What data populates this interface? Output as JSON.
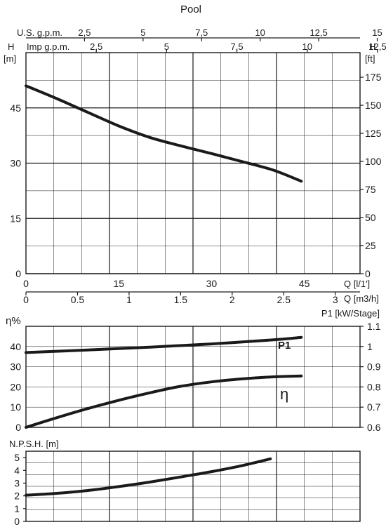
{
  "title": "Pool",
  "head_panel": {
    "y_left_label": "H",
    "y_left_unit": "[m]",
    "y_right_label": "H",
    "y_right_unit": "[ft]",
    "top_axis_1_label": "U.S. g.p.m.",
    "top_axis_1_ticks": [
      "2.5",
      "5",
      "7.5",
      "10",
      "12.5",
      "15"
    ],
    "top_axis_2_label": "Imp g.p.m.",
    "top_axis_2_ticks": [
      "2.5",
      "5",
      "7.5",
      "10",
      "12.5"
    ],
    "x_lmin_label": "Q [l/1']",
    "x_m3h_label": "Q [m3/h]",
    "x_lmin_ticks": [
      "0",
      "15",
      "30",
      "45"
    ],
    "x_m3h_ticks": [
      "0",
      "0.5",
      "1",
      "1.5",
      "2",
      "2.5",
      "3"
    ],
    "y_left_ticks": [
      "0",
      "15",
      "30",
      "45"
    ],
    "y_right_ticks": [
      "0",
      "25",
      "50",
      "75",
      "100",
      "125",
      "150",
      "175"
    ]
  },
  "efficiency_panel": {
    "y_left_label": "η%",
    "y_right_label": "P1 [kW/Stage]",
    "y_left_ticks": [
      "0",
      "10",
      "20",
      "30",
      "40"
    ],
    "y_right_ticks": [
      "0.6",
      "0.7",
      "0.8",
      "0.9",
      "1",
      "1.1"
    ],
    "p1_curve_label": "P1",
    "eta_curve_label": "η"
  },
  "npsh_panel": {
    "y_label": "N.P.S.H. [m]",
    "y_ticks": [
      "0",
      "1",
      "2",
      "3",
      "4",
      "5"
    ]
  },
  "chart_data": [
    {
      "type": "line",
      "panel": "head",
      "xlabel": "Q [l/1']",
      "ylabel": "H [m]",
      "xlim": [
        0,
        54
      ],
      "ylim": [
        0,
        60
      ],
      "secondary_y_unit": "ft",
      "secondary_ylim": [
        0,
        196.9
      ],
      "grid": true,
      "series": [
        {
          "x": [
            0,
            5,
            10,
            15,
            20,
            25,
            30,
            35,
            40,
            44.5
          ],
          "y": [
            51,
            47.5,
            43.8,
            40.1,
            37,
            34.7,
            32.6,
            30.4,
            28.1,
            25.1
          ]
        }
      ]
    },
    {
      "type": "line",
      "panel": "efficiency",
      "xlabel": "Q [l/1']",
      "ylabel": "η%",
      "xlim": [
        0,
        54
      ],
      "ylim": [
        0,
        50
      ],
      "secondary_ylabel": "P1 [kW/Stage]",
      "secondary_ylim": [
        0.6,
        1.1
      ],
      "grid": true,
      "series": [
        {
          "name": "η",
          "axis": "left",
          "x": [
            0,
            5,
            10,
            15,
            20,
            25,
            30,
            35,
            40,
            44.5
          ],
          "y": [
            0,
            4.8,
            9.3,
            13.4,
            17.1,
            20.3,
            22.5,
            24,
            25,
            25.4
          ]
        },
        {
          "name": "P1",
          "axis": "right",
          "x": [
            0,
            10,
            20,
            30,
            40,
            44.5
          ],
          "y": [
            0.97,
            0.983,
            0.997,
            1.013,
            1.033,
            1.045
          ]
        }
      ]
    },
    {
      "type": "line",
      "panel": "npsh",
      "xlabel": "Q [l/1']",
      "ylabel": "N.P.S.H. [m]",
      "xlim": [
        0,
        54
      ],
      "ylim": [
        0,
        5.5
      ],
      "grid": true,
      "series": [
        {
          "x": [
            0,
            5,
            10,
            15,
            20,
            25,
            30,
            35,
            39.5
          ],
          "y": [
            2.05,
            2.2,
            2.42,
            2.73,
            3.08,
            3.48,
            3.9,
            4.38,
            4.9
          ]
        }
      ]
    }
  ]
}
